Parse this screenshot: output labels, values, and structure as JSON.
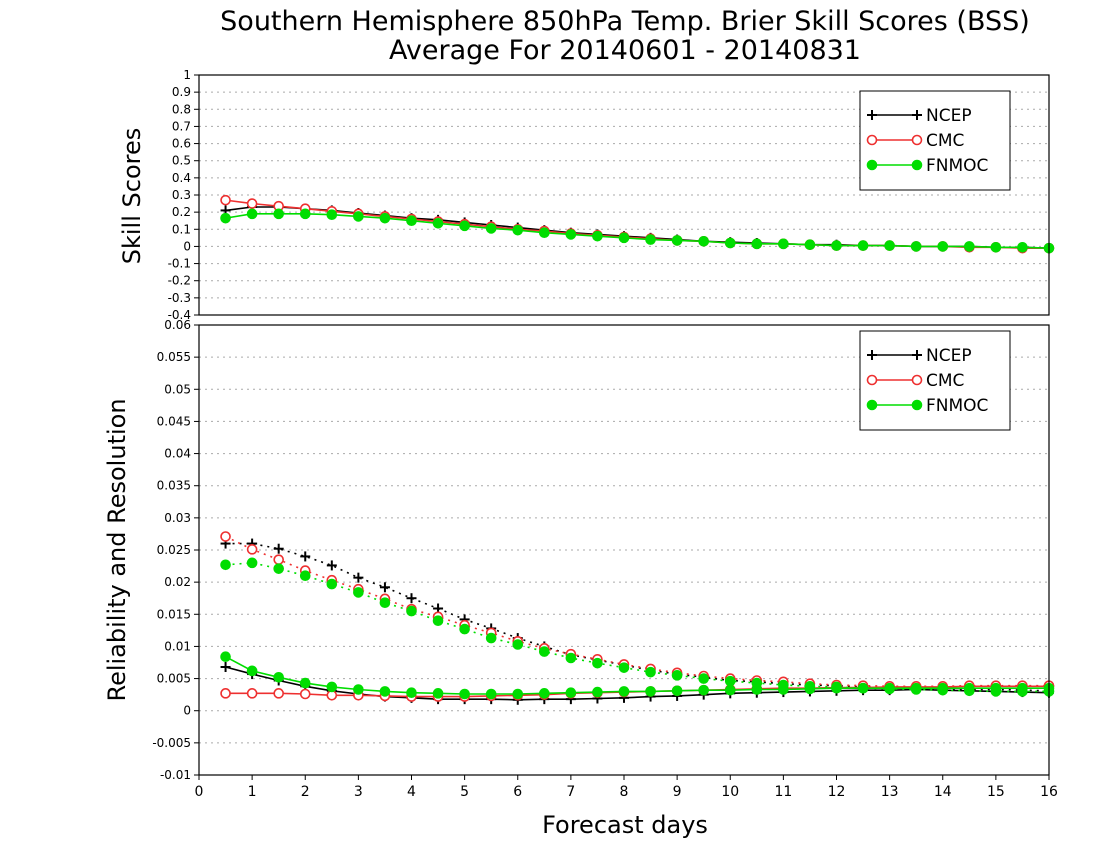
{
  "title_line1": "Southern Hemisphere 850hPa Temp. Brier Skill Scores (BSS)",
  "title_line2": "Average For 20140601 - 20140831",
  "xlabel": "Forecast days",
  "colors": {
    "NCEP": "#000000",
    "CMC": "#ee3030",
    "FNMOC": "#00dd00",
    "grid": "#aaaaaa"
  },
  "chart_data": [
    {
      "type": "line",
      "ylabel": "Skill Scores",
      "ylim": [
        -0.4,
        1
      ],
      "yticks": [
        1,
        0.9,
        0.8,
        0.7,
        0.6,
        0.5,
        0.4,
        0.3,
        0.2,
        0.1,
        0,
        -0.1,
        -0.2,
        -0.3,
        -0.4
      ],
      "ytick_labels": [
        "1",
        "0.9",
        "0.8",
        "0.7",
        "0.6",
        "0.5",
        "0.4",
        "0.3",
        "0.2",
        "0.1",
        "0",
        "-0.1",
        "-0.2",
        "-0.3",
        "-0.4"
      ],
      "xlim": [
        0,
        16
      ],
      "grid": true,
      "legend_position": "top-right",
      "x": [
        0.5,
        1,
        1.5,
        2,
        2.5,
        3,
        3.5,
        4,
        4.5,
        5,
        5.5,
        6,
        6.5,
        7,
        7.5,
        8,
        8.5,
        9,
        9.5,
        10,
        10.5,
        11,
        11.5,
        12,
        12.5,
        13,
        13.5,
        14,
        14.5,
        15,
        15.5,
        16
      ],
      "series": [
        {
          "name": "NCEP",
          "marker": "plus",
          "style": "solid",
          "values": [
            0.21,
            0.23,
            0.23,
            0.22,
            0.21,
            0.195,
            0.18,
            0.165,
            0.155,
            0.14,
            0.125,
            0.11,
            0.095,
            0.08,
            0.07,
            0.06,
            0.05,
            0.04,
            0.03,
            0.025,
            0.02,
            0.015,
            0.01,
            0.01,
            0.005,
            0.005,
            0.0,
            0.0,
            0.0,
            -0.005,
            -0.005,
            -0.01
          ]
        },
        {
          "name": "CMC",
          "marker": "open-circle",
          "style": "solid",
          "values": [
            0.27,
            0.25,
            0.235,
            0.22,
            0.205,
            0.19,
            0.175,
            0.16,
            0.145,
            0.13,
            0.115,
            0.1,
            0.09,
            0.075,
            0.065,
            0.055,
            0.045,
            0.035,
            0.03,
            0.02,
            0.015,
            0.015,
            0.01,
            0.005,
            0.005,
            0.005,
            0.0,
            0.0,
            -0.005,
            -0.005,
            -0.01,
            -0.01
          ]
        },
        {
          "name": "FNMOC",
          "marker": "filled-circle",
          "style": "solid",
          "values": [
            0.165,
            0.19,
            0.19,
            0.19,
            0.185,
            0.175,
            0.165,
            0.15,
            0.135,
            0.12,
            0.105,
            0.095,
            0.08,
            0.07,
            0.06,
            0.05,
            0.04,
            0.035,
            0.03,
            0.02,
            0.015,
            0.015,
            0.01,
            0.005,
            0.005,
            0.005,
            0.0,
            0.0,
            0.0,
            -0.005,
            -0.005,
            -0.01
          ]
        }
      ]
    },
    {
      "type": "line",
      "ylabel": "Reliability and Resolution",
      "ylim": [
        -0.01,
        0.06
      ],
      "yticks": [
        0.06,
        0.055,
        0.05,
        0.045,
        0.04,
        0.035,
        0.03,
        0.025,
        0.02,
        0.015,
        0.01,
        0.005,
        0,
        -0.005,
        -0.01
      ],
      "ytick_labels": [
        "0.06",
        "0.055",
        "0.05",
        "0.045",
        "0.04",
        "0.035",
        "0.03",
        "0.025",
        "0.02",
        "0.015",
        "0.01",
        "0.005",
        "0",
        "-0.005",
        "-0.01"
      ],
      "xlim": [
        0,
        16
      ],
      "xticks": [
        0,
        1,
        2,
        3,
        4,
        5,
        6,
        7,
        8,
        9,
        10,
        11,
        12,
        13,
        14,
        15,
        16
      ],
      "grid": true,
      "legend_position": "top-right",
      "x": [
        0.5,
        1,
        1.5,
        2,
        2.5,
        3,
        3.5,
        4,
        4.5,
        5,
        5.5,
        6,
        6.5,
        7,
        7.5,
        8,
        8.5,
        9,
        9.5,
        10,
        10.5,
        11,
        11.5,
        12,
        12.5,
        13,
        13.5,
        14,
        14.5,
        15,
        15.5,
        16
      ],
      "series": [
        {
          "name": "NCEP",
          "metric": "reliability",
          "marker": "plus",
          "style": "solid",
          "values": [
            0.0068,
            0.0057,
            0.0047,
            0.0038,
            0.0031,
            0.0026,
            0.0022,
            0.002,
            0.0018,
            0.0018,
            0.0018,
            0.0017,
            0.0018,
            0.0018,
            0.0019,
            0.002,
            0.0022,
            0.0023,
            0.0025,
            0.0027,
            0.0028,
            0.0029,
            0.003,
            0.0031,
            0.0032,
            0.0032,
            0.0033,
            0.0032,
            0.0031,
            0.003,
            0.0029,
            0.0028
          ]
        },
        {
          "name": "NCEP",
          "metric": "resolution",
          "marker": "plus",
          "style": "dotted",
          "values": [
            0.026,
            0.026,
            0.0252,
            0.024,
            0.0226,
            0.0207,
            0.0192,
            0.0175,
            0.0159,
            0.0142,
            0.0128,
            0.0113,
            0.01,
            0.0087,
            0.0079,
            0.0071,
            0.0063,
            0.0057,
            0.0052,
            0.0047,
            0.0045,
            0.0042,
            0.004,
            0.0039,
            0.0037,
            0.0036,
            0.0035,
            0.0034,
            0.0033,
            0.0033,
            0.0032,
            0.0031
          ]
        },
        {
          "name": "CMC",
          "metric": "reliability",
          "marker": "open-circle",
          "style": "solid",
          "values": [
            0.0027,
            0.0027,
            0.0027,
            0.0026,
            0.0024,
            0.0024,
            0.0023,
            0.0022,
            0.0022,
            0.0022,
            0.0023,
            0.0024,
            0.0025,
            0.0027,
            0.0028,
            0.0029,
            0.003,
            0.0031,
            0.0032,
            0.0033,
            0.0034,
            0.0035,
            0.0035,
            0.0036,
            0.0036,
            0.0037,
            0.0037,
            0.0037,
            0.0038,
            0.0038,
            0.0038,
            0.0038
          ]
        },
        {
          "name": "CMC",
          "metric": "resolution",
          "marker": "open-circle",
          "style": "dotted",
          "values": [
            0.0271,
            0.0251,
            0.0235,
            0.0218,
            0.0203,
            0.0189,
            0.0174,
            0.0158,
            0.0146,
            0.0133,
            0.0121,
            0.0108,
            0.0097,
            0.0088,
            0.008,
            0.0072,
            0.0065,
            0.0059,
            0.0054,
            0.005,
            0.0047,
            0.0045,
            0.0042,
            0.004,
            0.0039,
            0.0038,
            0.0038,
            0.0038,
            0.0039,
            0.0039,
            0.0039,
            0.0039
          ]
        },
        {
          "name": "FNMOC",
          "metric": "reliability",
          "marker": "filled-circle",
          "style": "solid",
          "values": [
            0.0084,
            0.0062,
            0.0052,
            0.0043,
            0.0037,
            0.0033,
            0.003,
            0.0028,
            0.0027,
            0.0026,
            0.0026,
            0.0026,
            0.0027,
            0.0028,
            0.0029,
            0.003,
            0.003,
            0.0031,
            0.0032,
            0.0032,
            0.0033,
            0.0033,
            0.0034,
            0.0035,
            0.0035,
            0.0035,
            0.0035,
            0.0035,
            0.0035,
            0.0035,
            0.0035,
            0.0035
          ]
        },
        {
          "name": "FNMOC",
          "metric": "resolution",
          "marker": "filled-circle",
          "style": "dotted",
          "values": [
            0.0227,
            0.023,
            0.0221,
            0.021,
            0.0197,
            0.0184,
            0.0168,
            0.0155,
            0.014,
            0.0127,
            0.0113,
            0.0103,
            0.0092,
            0.0082,
            0.0074,
            0.0067,
            0.006,
            0.0055,
            0.005,
            0.0046,
            0.0043,
            0.004,
            0.0038,
            0.0037,
            0.0035,
            0.0034,
            0.0033,
            0.0032,
            0.0031,
            0.003,
            0.003,
            0.003
          ]
        }
      ]
    }
  ]
}
